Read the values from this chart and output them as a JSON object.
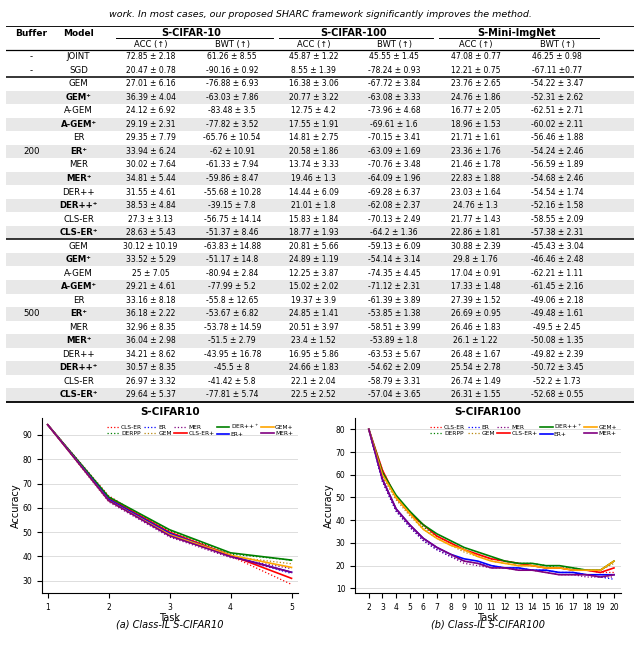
{
  "title_text": "work. In most cases, our proposed SHARC framework significantly improves the method.",
  "table": {
    "rows": [
      [
        "-",
        "JOINT",
        "72.85 ± 2.18",
        "61.26 ± 8.55",
        "45.87 ± 1.22",
        "45.55 ± 1.45",
        "47.08 ± 0.77",
        "46.25 ± 0.98"
      ],
      [
        "-",
        "SGD",
        "20.47 ± 0.78",
        "-90.16 ± 0.92",
        "8.55 ± 1.39",
        "-78.24 ± 0.93",
        "12.21 ± 0.75",
        "-67.11 ±0.77"
      ],
      [
        "",
        "GEM",
        "27.01 ± 6.16",
        "-76.88 ± 6.93",
        "16.38 ± 3.06",
        "-67.72 ± 3.84",
        "23.76 ± 2.65",
        "-54.22 ± 3.47"
      ],
      [
        "",
        "GEM⁺",
        "36.39 ± 4.04",
        "-63.03 ± 7.86",
        "20.77 ± 3.22",
        "-63.08 ± 3.33",
        "24.76 ± 1.86",
        "-52.31 ± 2.62"
      ],
      [
        "",
        "A-GEM",
        "24.12 ± 6.92",
        "-83.48 ± 3.5",
        "12.75 ± 4.2",
        "-73.96 ± 4.68",
        "16.77 ± 2.05",
        "-62.51 ± 2.71"
      ],
      [
        "",
        "A-GEM⁺",
        "29.19 ± 2.31",
        "-77.82 ± 3.52",
        "17.55 ± 1.91",
        "-69.61 ± 1.6",
        "18.96 ± 1.53",
        "-60.02 ± 2.11"
      ],
      [
        "",
        "ER",
        "29.35 ± 7.79",
        "-65.76 ± 10.54",
        "14.81 ± 2.75",
        "-70.15 ± 3.41",
        "21.71 ± 1.61",
        "-56.46 ± 1.88"
      ],
      [
        "200",
        "ER⁺",
        "33.94 ± 6.24",
        "-62 ± 10.91",
        "20.58 ± 1.86",
        "-63.09 ± 1.69",
        "23.36 ± 1.76",
        "-54.24 ± 2.46"
      ],
      [
        "",
        "MER",
        "30.02 ± 7.64",
        "-61.33 ± 7.94",
        "13.74 ± 3.33",
        "-70.76 ± 3.48",
        "21.46 ± 1.78",
        "-56.59 ± 1.89"
      ],
      [
        "",
        "MER⁺",
        "34.81 ± 5.44",
        "-59.86 ± 8.47",
        "19.46 ± 1.3",
        "-64.09 ± 1.96",
        "22.83 ± 1.88",
        "-54.68 ± 2.46"
      ],
      [
        "",
        "DER++",
        "31.55 ± 4.61",
        "-55.68 ± 10.28",
        "14.44 ± 6.09",
        "-69.28 ± 6.37",
        "23.03 ± 1.64",
        "-54.54 ± 1.74"
      ],
      [
        "",
        "DER++⁺",
        "38.53 ± 4.84",
        "-39.15 ± 7.8",
        "21.01 ± 1.8",
        "-62.08 ± 2.37",
        "24.76 ± 1.3",
        "-52.16 ± 1.58"
      ],
      [
        "",
        "CLS-ER",
        "27.3 ± 3.13",
        "-56.75 ± 14.14",
        "15.83 ± 1.84",
        "-70.13 ± 2.49",
        "21.77 ± 1.43",
        "-58.55 ± 2.09"
      ],
      [
        "",
        "CLS-ER⁺",
        "28.63 ± 5.43",
        "-51.37 ± 8.46",
        "18.77 ± 1.93",
        "-64.2 ± 1.36",
        "22.86 ± 1.81",
        "-57.38 ± 2.31"
      ],
      [
        "",
        "GEM",
        "30.12 ± 10.19",
        "-63.83 ± 14.88",
        "20.81 ± 5.66",
        "-59.13 ± 6.09",
        "30.88 ± 2.39",
        "-45.43 ± 3.04"
      ],
      [
        "",
        "GEM⁺",
        "33.52 ± 5.29",
        "-51.17 ± 14.8",
        "24.89 ± 1.19",
        "-54.14 ± 3.14",
        "29.8 ± 1.76",
        "-46.46 ± 2.48"
      ],
      [
        "",
        "A-GEM",
        "25 ± 7.05",
        "-80.94 ± 2.84",
        "12.25 ± 3.87",
        "-74.35 ± 4.45",
        "17.04 ± 0.91",
        "-62.21 ± 1.11"
      ],
      [
        "",
        "A-GEM⁺",
        "29.21 ± 4.61",
        "-77.99 ± 5.2",
        "15.02 ± 2.02",
        "-71.12 ± 2.31",
        "17.33 ± 1.48",
        "-61.45 ± 2.16"
      ],
      [
        "",
        "ER",
        "33.16 ± 8.18",
        "-55.8 ± 12.65",
        "19.37 ± 3.9",
        "-61.39 ± 3.89",
        "27.39 ± 1.52",
        "-49.06 ± 2.18"
      ],
      [
        "500",
        "ER⁺",
        "36.18 ± 2.22",
        "-53.67 ± 6.82",
        "24.85 ± 1.41",
        "-53.85 ± 1.38",
        "26.69 ± 0.95",
        "-49.48 ± 1.61"
      ],
      [
        "",
        "MER",
        "32.96 ± 8.35",
        "-53.78 ± 14.59",
        "20.51 ± 3.97",
        "-58.51 ± 3.99",
        "26.46 ± 1.83",
        "-49.5 ± 2.45"
      ],
      [
        "",
        "MER⁺",
        "36.04 ± 2.98",
        "-51.5 ± 2.79",
        "23.4 ± 1.52",
        "-53.89 ± 1.8",
        "26.1 ± 1.22",
        "-50.08 ± 1.35"
      ],
      [
        "",
        "DER++",
        "34.21 ± 8.62",
        "-43.95 ± 16.78",
        "16.95 ± 5.86",
        "-63.53 ± 5.67",
        "26.48 ± 1.67",
        "-49.82 ± 2.39"
      ],
      [
        "",
        "DER++⁺",
        "30.57 ± 8.35",
        "-45.5 ± 8",
        "24.66 ± 1.83",
        "-54.62 ± 2.09",
        "25.54 ± 2.78",
        "-50.72 ± 3.45"
      ],
      [
        "",
        "CLS-ER",
        "26.97 ± 3.32",
        "-41.42 ± 5.8",
        "22.1 ± 2.04",
        "-58.79 ± 3.31",
        "26.74 ± 1.49",
        "-52.2 ± 1.73"
      ],
      [
        "",
        "CLS-ER⁺",
        "29.64 ± 5.37",
        "-77.81 ± 5.74",
        "22.5 ± 2.52",
        "-57.04 ± 3.65",
        "26.31 ± 1.55",
        "-52.68 ± 0.55"
      ]
    ],
    "gray_rows": [
      3,
      5,
      7,
      9,
      11,
      13,
      15,
      17,
      19,
      21,
      23,
      25
    ],
    "thick_line_after": [
      1,
      13
    ]
  },
  "cifar10": {
    "title": "S-CIFAR10",
    "xlabel": "Task",
    "ylabel": "Accuracy",
    "xticks": [
      1,
      2,
      3,
      4,
      5
    ],
    "yticks": [
      30,
      40,
      50,
      60,
      70,
      80,
      90
    ],
    "ylim": [
      25,
      97
    ],
    "xlim": [
      0.9,
      5.1
    ],
    "legend_row1": [
      "CLS-ER",
      "DERPP",
      "ER",
      "GEM",
      "MER"
    ],
    "legend_row2": [
      "CLS-ER+",
      "DER++++",
      "ER+",
      "GEM+",
      "MER+"
    ],
    "legend_colors_r1": [
      "red",
      "green",
      "blue",
      "#b8860b",
      "purple"
    ],
    "legend_colors_r2": [
      "red",
      "green",
      "blue",
      "orange",
      "purple"
    ],
    "lines": [
      {
        "name": "CLS-ER",
        "color": "red",
        "style": "dotted",
        "data": [
          94.2,
          65.0,
          49.5,
          40.2,
          28.5
        ]
      },
      {
        "name": "DERPP",
        "color": "green",
        "style": "dotted",
        "data": [
          94.2,
          64.5,
          50.5,
          41.0,
          38.5
        ]
      },
      {
        "name": "ER",
        "color": "blue",
        "style": "dotted",
        "data": [
          94.2,
          63.5,
          49.0,
          40.0,
          33.0
        ]
      },
      {
        "name": "GEM",
        "color": "#b8860b",
        "style": "dotted",
        "data": [
          94.2,
          63.0,
          48.5,
          40.0,
          37.0
        ]
      },
      {
        "name": "MER",
        "color": "purple",
        "style": "dotted",
        "data": [
          94.2,
          62.5,
          48.0,
          39.5,
          35.0
        ]
      },
      {
        "name": "CLS-ER+",
        "color": "red",
        "style": "solid",
        "data": [
          94.2,
          64.0,
          50.0,
          40.5,
          31.0
        ]
      },
      {
        "name": "DER++++",
        "color": "green",
        "style": "solid",
        "data": [
          94.2,
          64.5,
          51.0,
          41.5,
          38.5
        ]
      },
      {
        "name": "ER+",
        "color": "blue",
        "style": "solid",
        "data": [
          94.2,
          63.5,
          49.5,
          40.2,
          33.5
        ]
      },
      {
        "name": "GEM+",
        "color": "orange",
        "style": "solid",
        "data": [
          94.2,
          63.0,
          49.0,
          40.5,
          35.5
        ]
      },
      {
        "name": "MER+",
        "color": "purple",
        "style": "solid",
        "data": [
          94.2,
          63.0,
          48.5,
          40.0,
          33.5
        ]
      }
    ]
  },
  "cifar100": {
    "title": "S-CIFAR100",
    "xlabel": "Task",
    "ylabel": "Accuracy",
    "xticks": [
      2,
      3,
      4,
      5,
      6,
      7,
      8,
      9,
      10,
      11,
      12,
      13,
      14,
      15,
      16,
      17,
      18,
      19,
      20
    ],
    "yticks": [
      10,
      20,
      30,
      40,
      50,
      60,
      70,
      80
    ],
    "ylim": [
      8,
      85
    ],
    "xlim": [
      1,
      20.5
    ],
    "lines": [
      {
        "name": "CLS-ER",
        "color": "red",
        "style": "dotted",
        "data": [
          80,
          62,
          50,
          43,
          38,
          33,
          30,
          27,
          25,
          23,
          22,
          21,
          20,
          19,
          19,
          18,
          18,
          17,
          17
        ]
      },
      {
        "name": "DERPP",
        "color": "green",
        "style": "dotted",
        "data": [
          80,
          60,
          50,
          44,
          37,
          33,
          30,
          27,
          25,
          23,
          22,
          21,
          21,
          20,
          19,
          19,
          18,
          18,
          22
        ]
      },
      {
        "name": "ER",
        "color": "blue",
        "style": "dotted",
        "data": [
          80,
          57,
          44,
          37,
          31,
          27,
          24,
          22,
          21,
          20,
          19,
          19,
          18,
          18,
          17,
          17,
          16,
          15,
          14
        ]
      },
      {
        "name": "GEM",
        "color": "#b8860b",
        "style": "dotted",
        "data": [
          80,
          59,
          49,
          42,
          36,
          32,
          29,
          26,
          24,
          22,
          21,
          20,
          20,
          19,
          19,
          18,
          18,
          18,
          21
        ]
      },
      {
        "name": "MER",
        "color": "purple",
        "style": "dotted",
        "data": [
          80,
          57,
          44,
          37,
          31,
          27,
          24,
          21,
          20,
          19,
          19,
          18,
          18,
          17,
          16,
          16,
          15,
          15,
          15
        ]
      },
      {
        "name": "CLS-ER+",
        "color": "red",
        "style": "solid",
        "data": [
          80,
          62,
          50,
          43,
          38,
          33,
          30,
          27,
          25,
          23,
          22,
          21,
          20,
          19,
          19,
          18,
          18,
          17,
          19
        ]
      },
      {
        "name": "DER++++",
        "color": "green",
        "style": "solid",
        "data": [
          80,
          61,
          51,
          44,
          38,
          34,
          31,
          28,
          26,
          24,
          22,
          21,
          21,
          20,
          20,
          19,
          18,
          18,
          22
        ]
      },
      {
        "name": "ER+",
        "color": "blue",
        "style": "solid",
        "data": [
          80,
          58,
          45,
          38,
          32,
          28,
          25,
          23,
          22,
          20,
          19,
          19,
          18,
          18,
          17,
          17,
          16,
          16,
          16
        ]
      },
      {
        "name": "GEM+",
        "color": "orange",
        "style": "solid",
        "data": [
          80,
          60,
          50,
          43,
          36,
          32,
          29,
          27,
          24,
          22,
          21,
          20,
          20,
          19,
          19,
          18,
          18,
          18,
          22
        ]
      },
      {
        "name": "MER+",
        "color": "purple",
        "style": "solid",
        "data": [
          80,
          58,
          45,
          38,
          32,
          28,
          25,
          22,
          21,
          19,
          19,
          18,
          18,
          17,
          16,
          16,
          16,
          15,
          16
        ]
      }
    ]
  },
  "caption_a": "(a) Class-IL S-CIFAR10",
  "caption_b": "(b) Class-IL S-CIFAR100"
}
